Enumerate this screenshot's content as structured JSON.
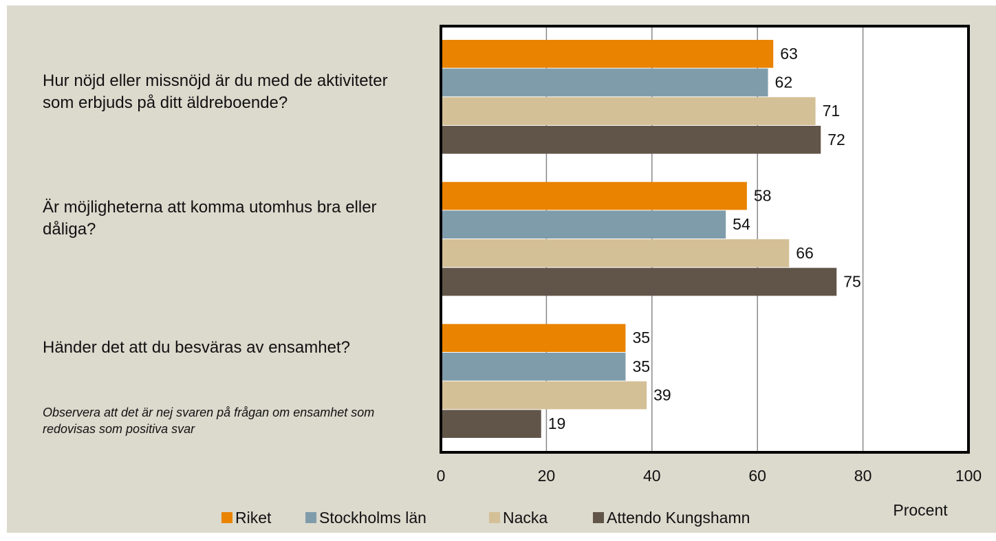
{
  "chart_data": {
    "type": "barh",
    "categories": [
      "Hur nöjd eller missnöjd är du med de aktiviteter som erbjuds på ditt äldreboende?",
      "Är möjligheterna att komma utomhus bra eller dåliga?",
      "Händer det att du besväras av ensamhet?"
    ],
    "annotation": "Observera att det är nej svaren på frågan om ensamhet som redovisas som positiva svar",
    "xlabel": "Procent",
    "xlim": [
      0,
      100
    ],
    "xticks": [
      0,
      20,
      40,
      60,
      80,
      100
    ],
    "grid": true,
    "legend": "bottom",
    "series": [
      {
        "name": "Riket",
        "color": "#e98300",
        "values": [
          63,
          58,
          35
        ]
      },
      {
        "name": "Stockholms län",
        "color": "#7f9cab",
        "values": [
          62,
          54,
          35
        ]
      },
      {
        "name": "Nacka",
        "color": "#d4c097",
        "values": [
          71,
          66,
          39
        ]
      },
      {
        "name": "Attendo Kungshamn",
        "color": "#615549",
        "values": [
          72,
          75,
          19
        ]
      }
    ]
  }
}
